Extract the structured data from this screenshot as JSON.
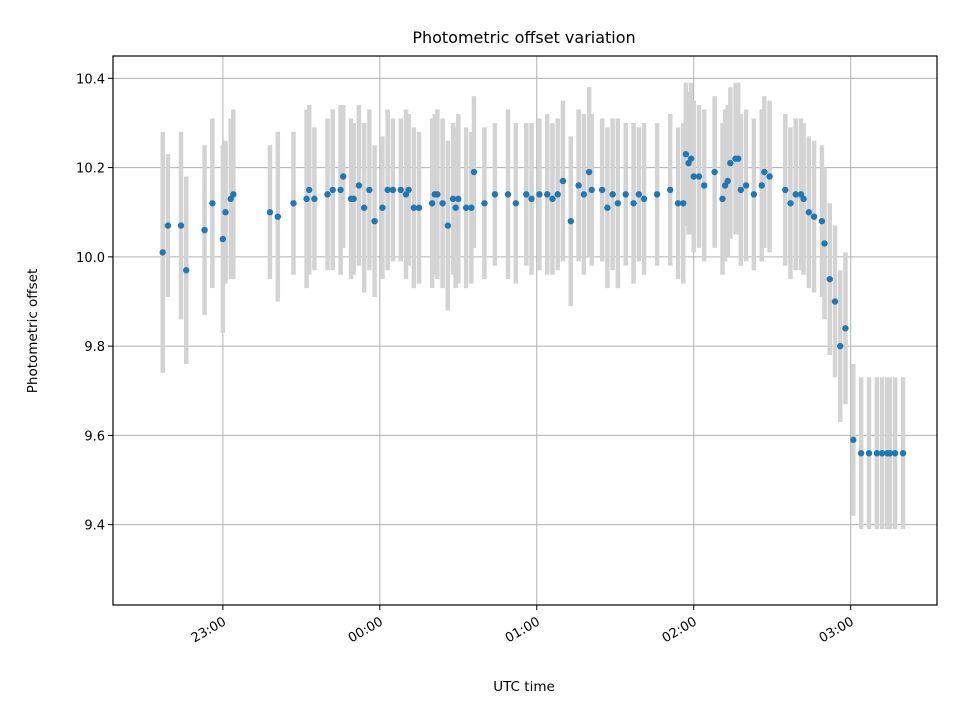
{
  "chart_data": {
    "type": "scatter",
    "title": "Photometric offset variation",
    "xlabel": "UTC time",
    "ylabel": "Photometric offset",
    "xlim": [
      "22:18",
      "03:33"
    ],
    "ylim": [
      9.22,
      10.45
    ],
    "x_ticks": [
      "23:00",
      "00:00",
      "01:00",
      "02:00",
      "03:00"
    ],
    "y_ticks": [
      9.4,
      9.6,
      9.8,
      10.0,
      10.2,
      10.4
    ],
    "grid": true,
    "point_color": "#1f77b4",
    "errorbar_color": "#d3d3d3",
    "series": [
      {
        "x": [
          "22:37",
          "22:39",
          "22:44",
          "22:46",
          "22:53",
          "22:56",
          "23:00",
          "23:01",
          "23:03",
          "23:04",
          "23:18",
          "23:21",
          "23:27",
          "23:32",
          "23:33",
          "23:35",
          "23:40",
          "23:42",
          "23:45",
          "23:46",
          "23:49",
          "23:50",
          "23:52",
          "23:54",
          "23:56",
          "23:58",
          "24:01",
          "24:03",
          "24:05",
          "24:08",
          "24:10",
          "24:11",
          "24:13",
          "24:15",
          "24:20",
          "24:21",
          "24:22",
          "24:24",
          "24:26",
          "24:28",
          "24:29",
          "24:30",
          "24:33",
          "24:35",
          "24:36",
          "24:40",
          "24:44",
          "24:49",
          "24:52",
          "24:56",
          "24:58",
          "25:01",
          "25:04",
          "25:06",
          "25:08",
          "25:10",
          "25:13",
          "25:16",
          "25:18",
          "25:20",
          "25:21",
          "25:25",
          "25:27",
          "25:29",
          "25:31",
          "25:34",
          "25:37",
          "25:39",
          "25:41",
          "25:46",
          "25:51",
          "25:54",
          "25:56",
          "25:57",
          "25:58",
          "25:59",
          "26:00",
          "26:02",
          "26:04",
          "26:08",
          "26:11",
          "26:12",
          "26:13",
          "26:14",
          "26:16",
          "26:17",
          "26:18",
          "26:20",
          "26:23",
          "26:26",
          "26:27",
          "26:29",
          "26:35",
          "26:37",
          "26:39",
          "26:41",
          "26:42",
          "26:44",
          "26:46",
          "26:49",
          "26:50",
          "26:52",
          "26:54",
          "26:56",
          "26:58",
          "27:01",
          "27:04",
          "27:07",
          "27:10",
          "27:12",
          "27:14",
          "27:15",
          "27:17",
          "27:20"
        ],
        "y": [
          10.01,
          10.07,
          10.07,
          9.97,
          10.06,
          10.12,
          10.04,
          10.1,
          10.13,
          10.14,
          10.1,
          10.09,
          10.12,
          10.13,
          10.15,
          10.13,
          10.14,
          10.15,
          10.15,
          10.18,
          10.13,
          10.13,
          10.16,
          10.11,
          10.15,
          10.08,
          10.11,
          10.15,
          10.15,
          10.15,
          10.14,
          10.15,
          10.11,
          10.11,
          10.12,
          10.14,
          10.14,
          10.12,
          10.07,
          10.13,
          10.11,
          10.13,
          10.11,
          10.11,
          10.19,
          10.12,
          10.14,
          10.14,
          10.12,
          10.14,
          10.13,
          10.14,
          10.14,
          10.13,
          10.14,
          10.17,
          10.08,
          10.16,
          10.14,
          10.19,
          10.15,
          10.15,
          10.11,
          10.14,
          10.12,
          10.14,
          10.12,
          10.14,
          10.13,
          10.14,
          10.15,
          10.12,
          10.12,
          10.23,
          10.21,
          10.22,
          10.18,
          10.18,
          10.16,
          10.19,
          10.13,
          10.16,
          10.17,
          10.21,
          10.22,
          10.22,
          10.15,
          10.16,
          10.14,
          10.16,
          10.19,
          10.18,
          10.15,
          10.12,
          10.14,
          10.14,
          10.13,
          10.1,
          10.09,
          10.08,
          10.03,
          9.95,
          9.9,
          9.8,
          9.84,
          9.59,
          9.56,
          9.56,
          9.56,
          9.56,
          9.56,
          9.56,
          9.56,
          9.56
        ],
        "yerr": [
          0.27,
          0.16,
          0.21,
          0.21,
          0.19,
          0.19,
          0.21,
          0.16,
          0.18,
          0.19,
          0.15,
          0.19,
          0.16,
          0.2,
          0.19,
          0.16,
          0.17,
          0.18,
          0.19,
          0.16,
          0.18,
          0.17,
          0.18,
          0.19,
          0.18,
          0.17,
          0.16,
          0.18,
          0.16,
          0.16,
          0.19,
          0.17,
          0.18,
          0.17,
          0.19,
          0.18,
          0.19,
          0.19,
          0.19,
          0.17,
          0.18,
          0.19,
          0.18,
          0.17,
          0.17,
          0.17,
          0.16,
          0.19,
          0.18,
          0.16,
          0.17,
          0.17,
          0.18,
          0.17,
          0.17,
          0.18,
          0.19,
          0.17,
          0.18,
          0.19,
          0.17,
          0.16,
          0.18,
          0.17,
          0.19,
          0.16,
          0.18,
          0.15,
          0.17,
          0.16,
          0.17,
          0.17,
          0.18,
          0.16,
          0.16,
          0.17,
          0.17,
          0.16,
          0.17,
          0.17,
          0.17,
          0.17,
          0.17,
          0.17,
          0.17,
          0.17,
          0.17,
          0.17,
          0.17,
          0.17,
          0.17,
          0.17,
          0.17,
          0.17,
          0.17,
          0.17,
          0.17,
          0.17,
          0.17,
          0.17,
          0.17,
          0.17,
          0.17,
          0.17,
          0.17,
          0.17,
          0.17,
          0.17,
          0.17,
          0.17,
          0.17,
          0.17,
          0.17,
          0.17
        ]
      }
    ]
  }
}
